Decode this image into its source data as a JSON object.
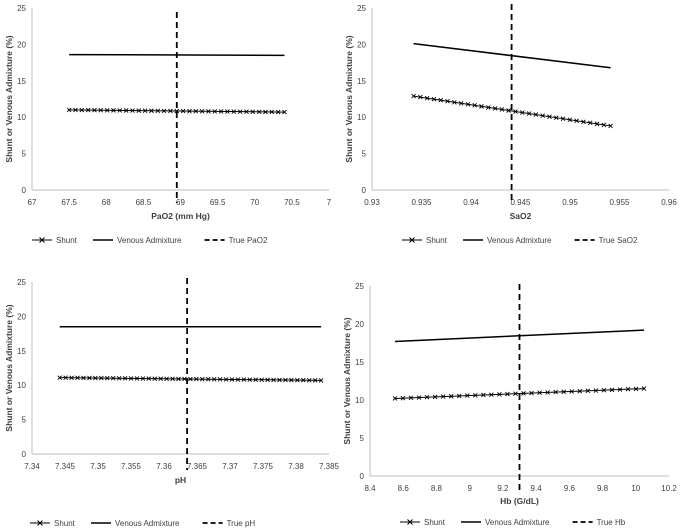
{
  "chart_data": [
    {
      "type": "line",
      "title": "",
      "xlabel": "PaO2 (mm Hg)",
      "ylabel": "Shunt or Venous Admixture (%)",
      "xlim": [
        67,
        71
      ],
      "ylim": [
        0,
        25
      ],
      "xticks": [
        "67",
        "67.5",
        "68",
        "68.5",
        "69",
        "69.5",
        "70",
        "70.5",
        "7"
      ],
      "yticks": [
        "0",
        "5",
        "10",
        "15",
        "20",
        "25"
      ],
      "true_value": 68.95,
      "series": [
        {
          "name": "Shunt",
          "style": "x-marker",
          "x_start": 67.5,
          "x_end": 70.4,
          "y_start": 11.0,
          "y_end": 10.7,
          "points": 35
        },
        {
          "name": "Venous Admixture",
          "style": "solid",
          "x_start": 67.5,
          "x_end": 70.4,
          "y_start": 18.6,
          "y_end": 18.5
        },
        {
          "name": "True PaO2",
          "style": "dashed",
          "x": 68.95
        }
      ],
      "legend": [
        "Shunt",
        "Venous Admixture",
        "True PaO2"
      ]
    },
    {
      "type": "line",
      "title": "",
      "xlabel": "SaO2",
      "ylabel": "Shunt or Venous Admixture (%)",
      "xlim": [
        0.93,
        0.96
      ],
      "ylim": [
        0,
        25
      ],
      "xticks": [
        "0.93",
        "0.935",
        "0.94",
        "0.945",
        "0.95",
        "0.955",
        "0.96"
      ],
      "yticks": [
        "0",
        "5",
        "10",
        "15",
        "20",
        "25"
      ],
      "true_value": 0.9441,
      "series": [
        {
          "name": "Shunt",
          "style": "x-marker",
          "x_start": 0.9342,
          "x_end": 0.9541,
          "y_start": 12.9,
          "y_end": 8.8,
          "points": 30
        },
        {
          "name": "Venous Admixture",
          "style": "solid",
          "x_start": 0.9342,
          "x_end": 0.9541,
          "y_start": 20.1,
          "y_end": 16.8
        },
        {
          "name": "True SaO2",
          "style": "dashed",
          "x": 0.9441
        }
      ],
      "legend": [
        "Shunt",
        "Venous Admixture",
        "True SaO2"
      ]
    },
    {
      "type": "line",
      "title": "",
      "xlabel": "pH",
      "ylabel": "Shunt or Venous Admixture (%)",
      "xlim": [
        7.34,
        7.385
      ],
      "ylim": [
        0,
        25
      ],
      "xticks": [
        "7.34",
        "7.345",
        "7.35",
        "7.355",
        "7.36",
        "7.365",
        "7.37",
        "7.375",
        "7.38",
        "7.385"
      ],
      "yticks": [
        "0",
        "5",
        "10",
        "15",
        "20",
        "25"
      ],
      "true_value": 7.3635,
      "series": [
        {
          "name": "Shunt",
          "style": "x-marker",
          "x_start": 7.3442,
          "x_end": 7.3838,
          "y_start": 11.1,
          "y_end": 10.7,
          "points": 45
        },
        {
          "name": "Venous Admixture",
          "style": "solid",
          "x_start": 7.3442,
          "x_end": 7.3838,
          "y_start": 18.5,
          "y_end": 18.5
        },
        {
          "name": "True pH",
          "style": "dashed",
          "x": 7.3635
        }
      ],
      "legend": [
        "Shunt",
        "Venous Admixture",
        "True pH"
      ]
    },
    {
      "type": "line",
      "title": "",
      "xlabel": "Hb (G/dL)",
      "ylabel": "Shunt or Venous Admixture (%)",
      "xlim": [
        8.4,
        10.2
      ],
      "ylim": [
        0,
        25
      ],
      "xticks": [
        "8.4",
        "8.6",
        "8.8",
        "9",
        "9.2",
        "9.4",
        "9.6",
        "9.8",
        "10",
        "10.2"
      ],
      "yticks": [
        "0",
        "5",
        "10",
        "15",
        "20",
        "25"
      ],
      "true_value": 9.3,
      "series": [
        {
          "name": "Shunt",
          "style": "x-marker",
          "x_start": 8.55,
          "x_end": 10.05,
          "y_start": 10.2,
          "y_end": 11.5,
          "points": 32
        },
        {
          "name": "Venous Admixture",
          "style": "solid",
          "x_start": 8.55,
          "x_end": 10.05,
          "y_start": 17.7,
          "y_end": 19.2
        },
        {
          "name": "True Hb",
          "style": "dashed",
          "x": 9.3
        }
      ],
      "legend": [
        "Shunt",
        "Venous Admixture",
        "True Hb"
      ]
    }
  ]
}
